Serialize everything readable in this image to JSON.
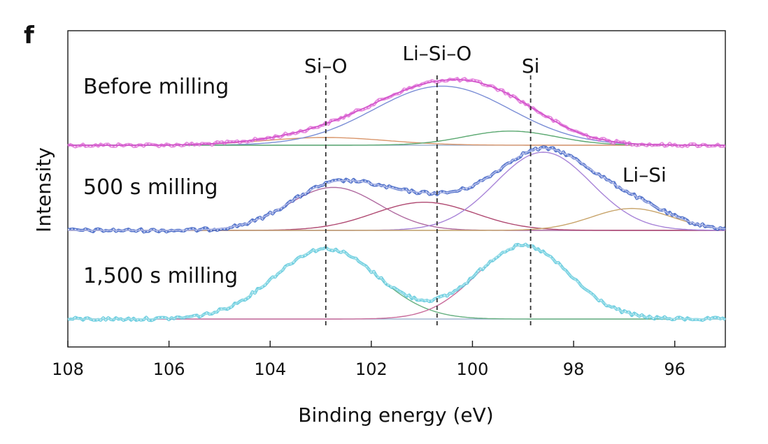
{
  "panel_label": "f",
  "colors": {
    "axis": "#1a1a1a",
    "refline": "#333333",
    "baseline": "#8fa8c8"
  },
  "chart_data": {
    "type": "line",
    "title": "",
    "xlabel": "Binding energy (eV)",
    "ylabel": "Intensity",
    "xlim": [
      108,
      95
    ],
    "x_reversed": true,
    "xticks": [
      108,
      106,
      104,
      102,
      100,
      98,
      96
    ],
    "xtick_labels": [
      "108",
      "106",
      "104",
      "102",
      "100",
      "98",
      "96"
    ],
    "reference_lines": [
      {
        "label": "Si–O",
        "x": 102.9
      },
      {
        "label": "Li–Si–O",
        "x": 100.7
      },
      {
        "label": "Si",
        "x": 98.85
      }
    ],
    "extra_peak_labels": [
      {
        "label": "Li–Si",
        "x": 96.6,
        "trace": 1
      }
    ],
    "traces": [
      {
        "name": "Before milling",
        "data_color": "#e070d8",
        "envelope_color": "#d04ec8",
        "components": [
          {
            "name": "Si–O",
            "center": 102.9,
            "sigma": 1.2,
            "height": 0.12,
            "color": "#d9956a"
          },
          {
            "name": "Li–Si–O",
            "center": 100.6,
            "sigma": 1.35,
            "height": 0.92,
            "color": "#7b8ed6"
          },
          {
            "name": "Si",
            "center": 99.25,
            "sigma": 0.9,
            "height": 0.22,
            "color": "#5aa870"
          }
        ]
      },
      {
        "name": "500 s milling",
        "data_color": "#3e62c4",
        "envelope_color": "#aeb8e8",
        "components": [
          {
            "name": "Si–O",
            "center": 102.75,
            "sigma": 0.9,
            "height": 0.55,
            "color": "#b06aa0"
          },
          {
            "name": "Li–Si–O",
            "center": 100.95,
            "sigma": 1.0,
            "height": 0.36,
            "color": "#b04a72"
          },
          {
            "name": "Si",
            "center": 98.6,
            "sigma": 0.95,
            "height": 1.0,
            "color": "#a884d8"
          },
          {
            "name": "Li–Si",
            "center": 96.85,
            "sigma": 0.8,
            "height": 0.28,
            "color": "#c8a46a"
          }
        ]
      },
      {
        "name": "1,500 s milling",
        "data_color": "#5cc8dc",
        "envelope_color": "#9ee0ea",
        "components": [
          {
            "name": "Si–O",
            "center": 102.9,
            "sigma": 1.02,
            "height": 0.96,
            "color": "#66b080"
          },
          {
            "name": "Si",
            "center": 99.0,
            "sigma": 0.92,
            "height": 1.0,
            "color": "#c86a9a"
          }
        ]
      }
    ]
  }
}
